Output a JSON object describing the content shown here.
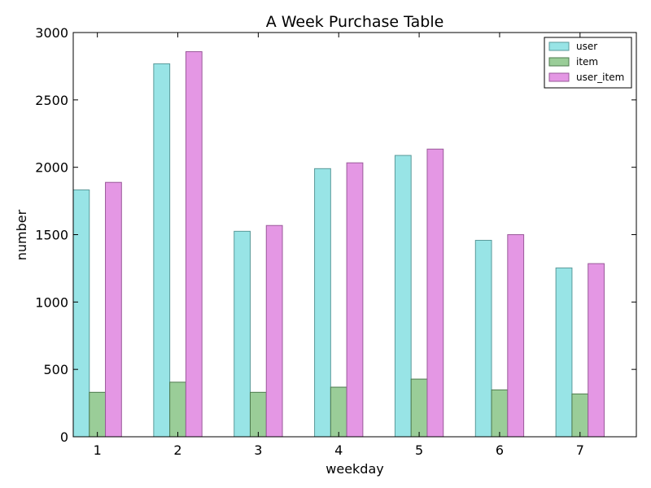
{
  "chart_data": {
    "type": "bar",
    "title": "A Week Purchase Table",
    "xlabel": "weekday",
    "ylabel": "number",
    "categories": [
      "1",
      "2",
      "3",
      "4",
      "5",
      "6",
      "7"
    ],
    "ylim": [
      0,
      3000
    ],
    "yticks": [
      0,
      500,
      1000,
      1500,
      2000,
      2500,
      3000
    ],
    "grid": false,
    "legend_position": "top-right",
    "series": [
      {
        "name": "user",
        "color": "#98e4e6",
        "edge": "#5a9a9a",
        "values": [
          1832,
          2768,
          1525,
          1990,
          2088,
          1458,
          1253
        ]
      },
      {
        "name": "item",
        "color": "#9acd98",
        "edge": "#4e7a4e",
        "values": [
          330,
          405,
          330,
          368,
          428,
          348,
          318
        ]
      },
      {
        "name": "user_item",
        "color": "#e497e4",
        "edge": "#9a5a9a",
        "values": [
          1888,
          2858,
          1568,
          2033,
          2135,
          1500,
          1285
        ]
      }
    ]
  }
}
